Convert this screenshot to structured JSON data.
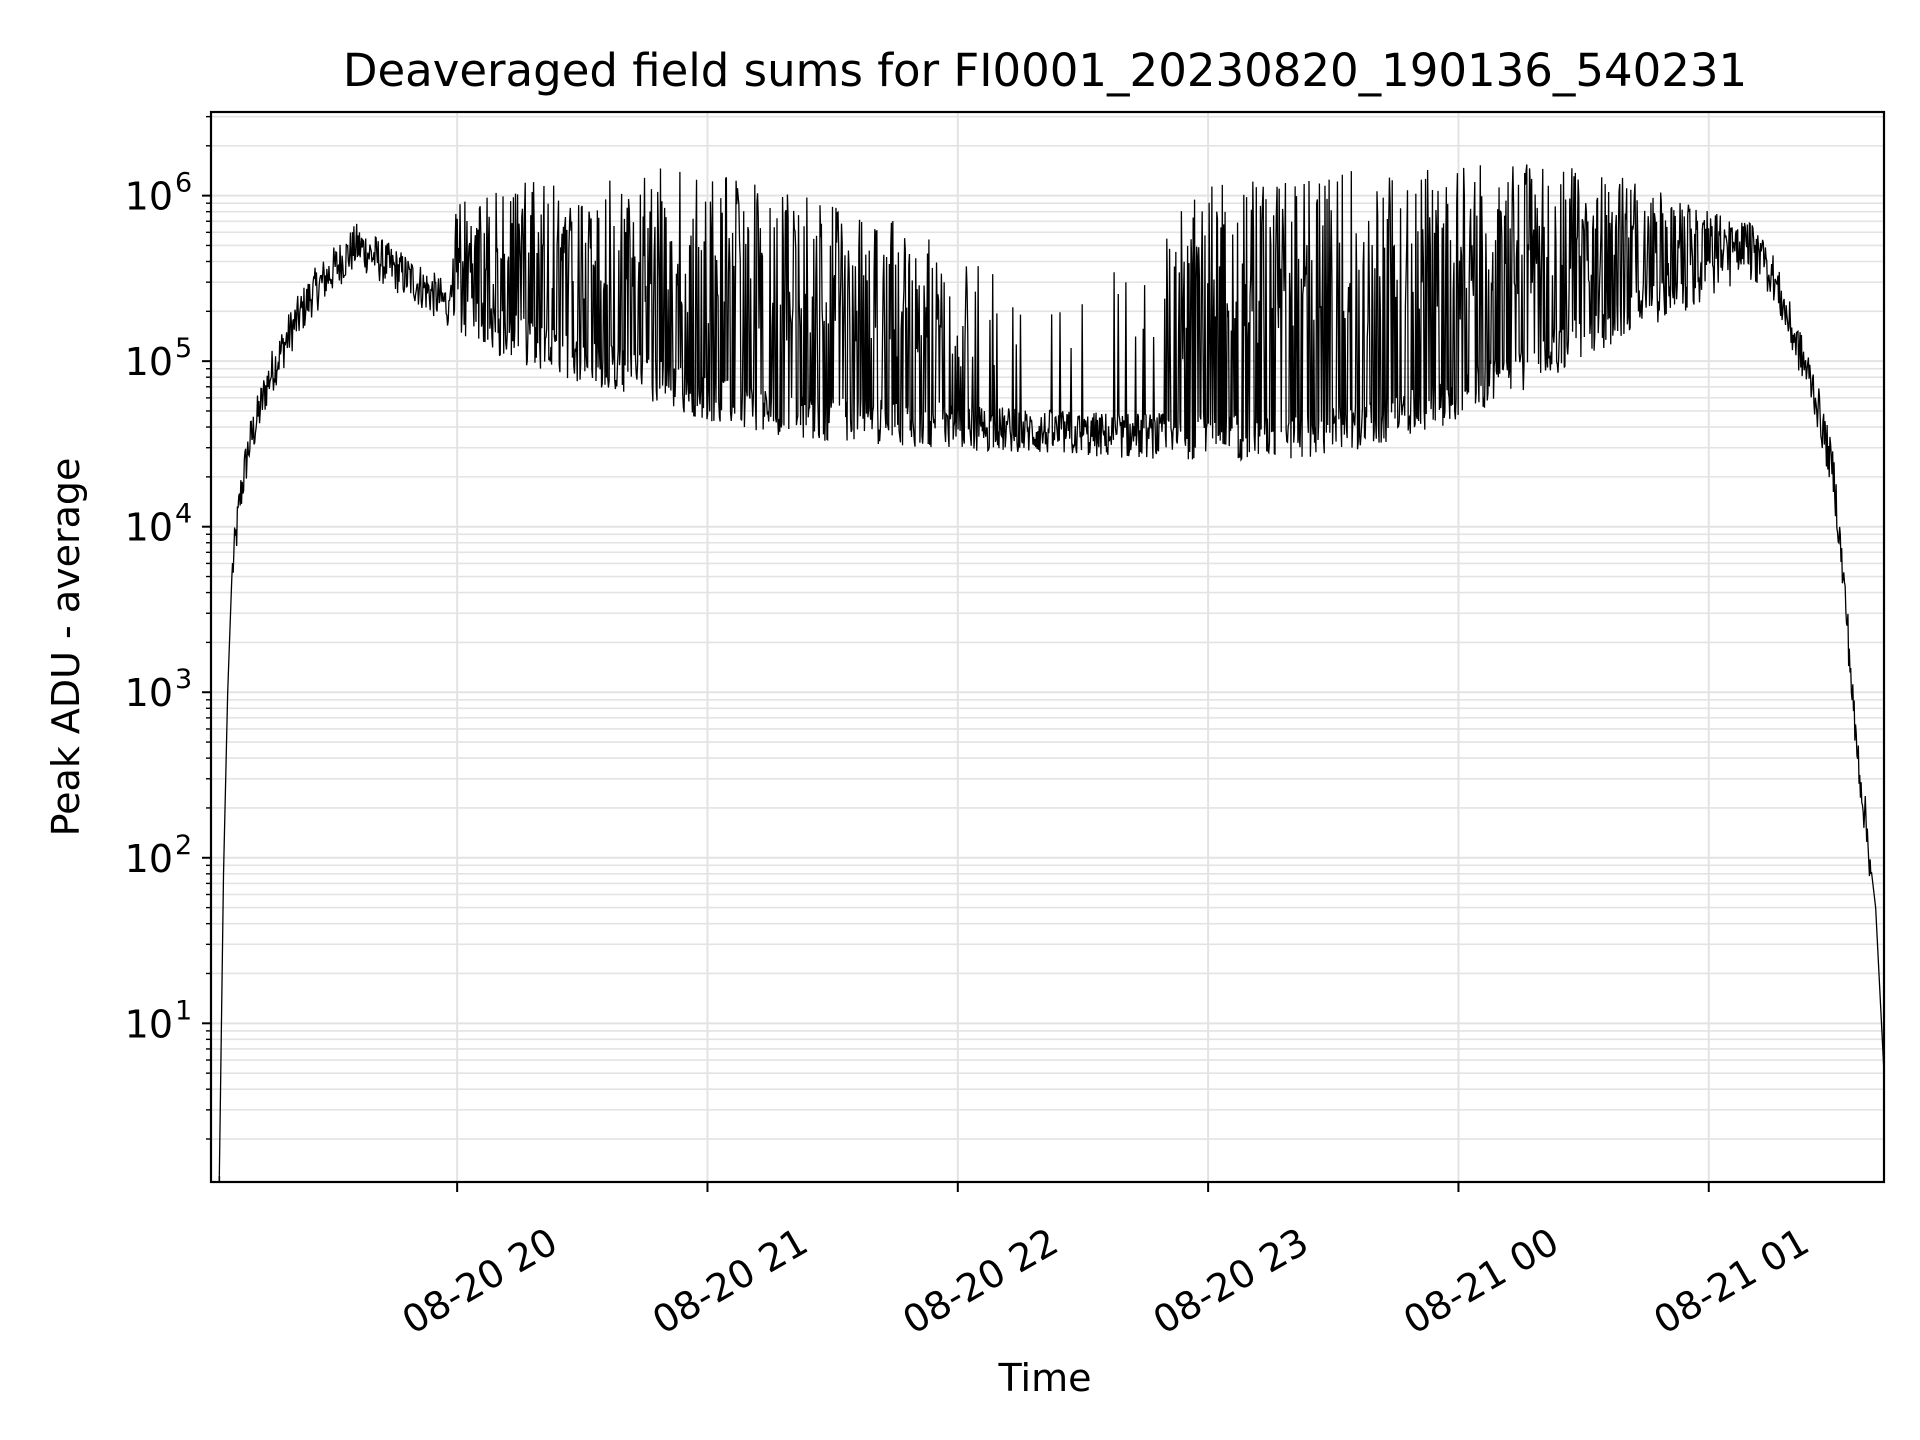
{
  "chart_data": {
    "type": "line",
    "title": "Deaveraged field sums for FI0001_20230820_190136_540231",
    "xlabel": "Time",
    "ylabel": "Peak ADU - average",
    "yscale": "log",
    "ylim": [
      1.1,
      3200000
    ],
    "xlim": [
      "08-20 19:01",
      "08-21 01:42"
    ],
    "grid": true,
    "x_ticks": [
      {
        "label": "08-20 20",
        "time": "08-20 20:00"
      },
      {
        "label": "08-20 21",
        "time": "08-20 21:00"
      },
      {
        "label": "08-20 22",
        "time": "08-20 22:00"
      },
      {
        "label": "08-20 23",
        "time": "08-20 23:00"
      },
      {
        "label": "08-21 00",
        "time": "08-21 00:00"
      },
      {
        "label": "08-21 01",
        "time": "08-21 01:00"
      }
    ],
    "y_ticks": [
      {
        "base": "10",
        "exp": "1",
        "value": 10
      },
      {
        "base": "10",
        "exp": "2",
        "value": 100
      },
      {
        "base": "10",
        "exp": "3",
        "value": 1000
      },
      {
        "base": "10",
        "exp": "4",
        "value": 10000
      },
      {
        "base": "10",
        "exp": "5",
        "value": 100000
      },
      {
        "base": "10",
        "exp": "6",
        "value": 1000000
      }
    ],
    "series": [
      {
        "color": "#000000",
        "baseline": [
          {
            "t": "08-20 19:03",
            "y": 1.2
          },
          {
            "t": "08-20 19:04",
            "y": 80
          },
          {
            "t": "08-20 19:05",
            "y": 1000
          },
          {
            "t": "08-20 19:06",
            "y": 5000
          },
          {
            "t": "08-20 19:08",
            "y": 15000
          },
          {
            "t": "08-20 19:10",
            "y": 30000
          },
          {
            "t": "08-20 19:15",
            "y": 80000
          },
          {
            "t": "08-20 19:20",
            "y": 150000
          },
          {
            "t": "08-20 19:25",
            "y": 250000
          },
          {
            "t": "08-20 19:30",
            "y": 350000
          },
          {
            "t": "08-20 19:36",
            "y": 500000
          },
          {
            "t": "08-20 19:42",
            "y": 400000
          },
          {
            "t": "08-20 19:50",
            "y": 300000
          },
          {
            "t": "08-20 20:00",
            "y": 200000
          },
          {
            "t": "08-20 20:10",
            "y": 150000
          },
          {
            "t": "08-20 20:20",
            "y": 120000
          },
          {
            "t": "08-20 20:30",
            "y": 100000
          },
          {
            "t": "08-20 20:45",
            "y": 80000
          },
          {
            "t": "08-20 21:00",
            "y": 60000
          },
          {
            "t": "08-20 21:15",
            "y": 50000
          },
          {
            "t": "08-20 21:30",
            "y": 45000
          },
          {
            "t": "08-20 22:00",
            "y": 40000
          },
          {
            "t": "08-20 22:30",
            "y": 36000
          },
          {
            "t": "08-20 23:00",
            "y": 35000
          },
          {
            "t": "08-20 23:20",
            "y": 35000
          },
          {
            "t": "08-20 23:40",
            "y": 42000
          },
          {
            "t": "08-21 00:00",
            "y": 60000
          },
          {
            "t": "08-21 00:15",
            "y": 90000
          },
          {
            "t": "08-21 00:30",
            "y": 140000
          },
          {
            "t": "08-21 00:45",
            "y": 220000
          },
          {
            "t": "08-21 01:00",
            "y": 320000
          },
          {
            "t": "08-21 01:10",
            "y": 420000
          },
          {
            "t": "08-21 01:15",
            "y": 350000
          },
          {
            "t": "08-21 01:20",
            "y": 150000
          },
          {
            "t": "08-21 01:25",
            "y": 70000
          },
          {
            "t": "08-21 01:30",
            "y": 20000
          },
          {
            "t": "08-21 01:33",
            "y": 3000
          },
          {
            "t": "08-21 01:35",
            "y": 600
          },
          {
            "t": "08-21 01:40",
            "y": 50
          },
          {
            "t": "08-21 01:42",
            "y": 5
          }
        ],
        "spike_envelope": [
          {
            "t": "08-20 19:58",
            "y": 200000
          },
          {
            "t": "08-20 20:00",
            "y": 1000000
          },
          {
            "t": "08-20 20:15",
            "y": 1200000
          },
          {
            "t": "08-20 20:30",
            "y": 1400000
          },
          {
            "t": "08-20 20:40",
            "y": 1600000
          },
          {
            "t": "08-20 20:55",
            "y": 1500000
          },
          {
            "t": "08-20 21:10",
            "y": 1200000
          },
          {
            "t": "08-20 21:30",
            "y": 900000
          },
          {
            "t": "08-20 21:45",
            "y": 700000
          },
          {
            "t": "08-20 22:00",
            "y": 500000
          },
          {
            "t": "08-20 22:20",
            "y": 200000
          },
          {
            "t": "08-20 22:40",
            "y": 400000
          },
          {
            "t": "08-20 23:00",
            "y": 1200000
          },
          {
            "t": "08-20 23:20",
            "y": 1300000
          },
          {
            "t": "08-20 23:30",
            "y": 1400000
          },
          {
            "t": "08-20 23:50",
            "y": 1500000
          },
          {
            "t": "08-21 00:10",
            "y": 1600000
          },
          {
            "t": "08-21 00:30",
            "y": 1500000
          },
          {
            "t": "08-21 00:45",
            "y": 1200000
          },
          {
            "t": "08-21 01:00",
            "y": 800000
          },
          {
            "t": "08-21 01:10",
            "y": 700000
          },
          {
            "t": "08-21 01:14",
            "y": 500000
          }
        ]
      }
    ]
  }
}
